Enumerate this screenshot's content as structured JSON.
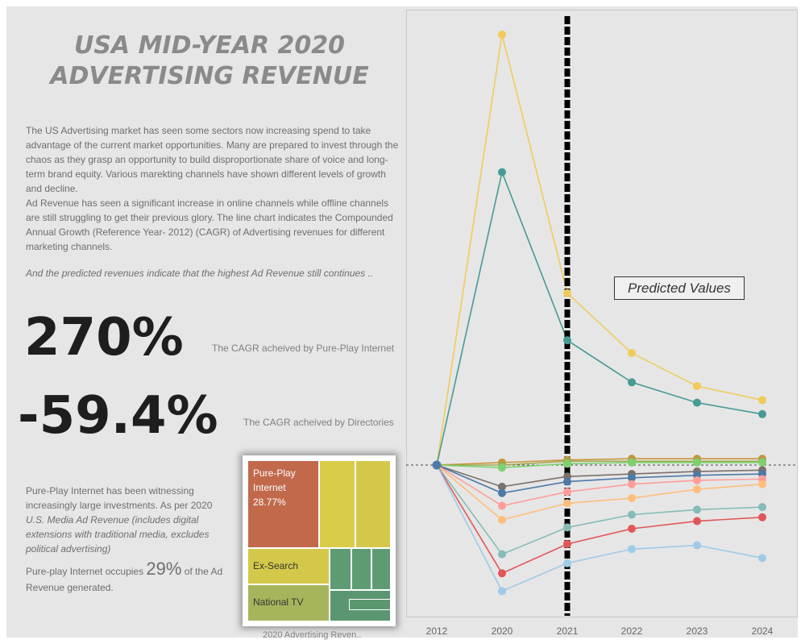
{
  "header": {
    "title_line1": "USA MID-YEAR 2020",
    "title_line2": "ADVERTISING REVENUE"
  },
  "description": {
    "para1": "The US Advertising market has seen some sectors now increasing spend to take advantage of the current market opportunities. Many are prepared to invest through the chaos as they grasp an opportunity to build disproportionate share of voice and long-term brand equity. Various marekting channels have shown different levels of growth and decline.",
    "para2": "Ad Revenue has seen a significant increase in online channels while offline channels are still struggling to get their previous glory. The line chart indicates the Compounded Annual Growth (Reference Year- 2012) (CAGR) of Advertising revenues for different marketing channels.",
    "teaser": "And the predicted revenues indicate that the highest Ad Revenue still continues .."
  },
  "kpis": [
    {
      "value": "270%",
      "caption": "The CAGR acheived by Pure-Play Internet"
    },
    {
      "value": "-59.4%",
      "caption": "The CAGR acheived by Directories"
    }
  ],
  "note": {
    "line1": "Pure-Play Internet has been witnessing increasingly large investments. As per 2020",
    "line2": "U.S. Media Ad Revenue (includes digital extensions with traditional media, excludes political advertising)",
    "share_prefix": "Pure-play Internet occupies ",
    "share_value": "29%",
    "share_suffix": " of the Ad Revenue generated."
  },
  "treemap": {
    "caption": "2020 Advertising Reven..",
    "blocks": [
      {
        "label_lines": [
          "Pure-Play",
          "Internet",
          "28.77%"
        ],
        "color": "#c2694b"
      },
      {
        "label_lines": [
          "Ex-Search"
        ],
        "color": "#d4c84b"
      },
      {
        "label_lines": [
          "National TV"
        ],
        "color": "#a6b55c"
      },
      {
        "label_lines": [],
        "color": "#d8cc48"
      },
      {
        "label_lines": [],
        "color": "#d4c84b"
      },
      {
        "label_lines": [],
        "color": "#5e9b73"
      },
      {
        "label_lines": [],
        "color": "#5a9670"
      }
    ]
  },
  "chart_data": {
    "type": "line",
    "categories": [
      "2012",
      "2020",
      "2021",
      "2022",
      "2023",
      "2024"
    ],
    "annotation": "Predicted Values",
    "forecast_divider_at": "2021",
    "reference_line_value": 0,
    "ylim": [
      -1.0,
      3.7
    ],
    "series": [
      {
        "color": "#f0cb5c",
        "values": [
          0,
          3.38,
          1.35,
          0.88,
          0.62,
          0.51
        ]
      },
      {
        "color": "#479b94",
        "values": [
          0,
          2.3,
          0.98,
          0.65,
          0.49,
          0.4
        ]
      },
      {
        "color": "#c8963c",
        "values": [
          0,
          0.02,
          0.04,
          0.05,
          0.05,
          0.05
        ]
      },
      {
        "color": "#9fa84c",
        "values": [
          0,
          0.0,
          0.03,
          0.03,
          0.03,
          0.03
        ]
      },
      {
        "color": "#7cd16e",
        "values": [
          0,
          -0.02,
          0.01,
          0.02,
          0.02,
          0.02
        ]
      },
      {
        "color": "#7a716c",
        "values": [
          0,
          -0.17,
          -0.09,
          -0.07,
          -0.05,
          -0.04
        ]
      },
      {
        "color": "#4e79a7",
        "values": [
          0,
          -0.22,
          -0.13,
          -0.1,
          -0.08,
          -0.07
        ]
      },
      {
        "color": "#ff9d9a",
        "values": [
          0,
          -0.32,
          -0.21,
          -0.15,
          -0.12,
          -0.11
        ]
      },
      {
        "color": "#ffbe7d",
        "values": [
          0,
          -0.43,
          -0.3,
          -0.26,
          -0.19,
          -0.15
        ]
      },
      {
        "color": "#86bcb6",
        "values": [
          0,
          -0.7,
          -0.49,
          -0.39,
          -0.35,
          -0.33
        ]
      },
      {
        "color": "#e15759",
        "values": [
          0,
          -0.85,
          -0.62,
          -0.5,
          -0.44,
          -0.41
        ]
      },
      {
        "color": "#a0cbe8",
        "values": [
          0,
          -0.99,
          -0.77,
          -0.66,
          -0.63,
          -0.73
        ]
      }
    ]
  }
}
